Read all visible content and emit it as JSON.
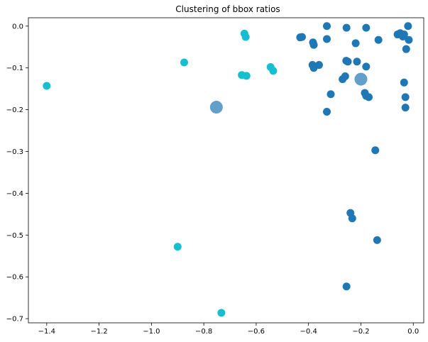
{
  "chart_data": {
    "type": "scatter",
    "title": "Clustering of bbox ratios",
    "xlabel": "",
    "ylabel": "",
    "xlim": [
      -1.47,
      0.04
    ],
    "ylim": [
      -0.71,
      0.02
    ],
    "xticks": [
      -1.4,
      -1.2,
      -1.0,
      -0.8,
      -0.6,
      -0.4,
      -0.2,
      0.0
    ],
    "xtick_labels": [
      "−1.4",
      "−1.2",
      "−1.0",
      "−0.8",
      "−0.6",
      "−0.4",
      "−0.2",
      "0.0"
    ],
    "yticks": [
      0.0,
      -0.1,
      -0.2,
      -0.3,
      -0.4,
      -0.5,
      -0.6,
      -0.7
    ],
    "ytick_labels": [
      "0.0",
      "−0.1",
      "−0.2",
      "−0.3",
      "−0.4",
      "−0.5",
      "−0.6",
      "−0.7"
    ],
    "grid": false,
    "legend": "none",
    "series": [
      {
        "color": "#1f77b4",
        "points": [
          [
            -0.432,
            -0.027
          ],
          [
            -0.425,
            -0.026
          ],
          [
            -0.33,
            0.0
          ],
          [
            -0.33,
            -0.031
          ],
          [
            -0.383,
            -0.039
          ],
          [
            -0.38,
            -0.045
          ],
          [
            -0.255,
            -0.004
          ],
          [
            -0.18,
            -0.004
          ],
          [
            -0.22,
            -0.041
          ],
          [
            -0.133,
            -0.033
          ],
          [
            -0.06,
            -0.02
          ],
          [
            -0.05,
            -0.017
          ],
          [
            -0.04,
            -0.025
          ],
          [
            -0.035,
            -0.02
          ],
          [
            -0.02,
            0.0
          ],
          [
            -0.017,
            -0.033
          ],
          [
            -0.027,
            -0.055
          ],
          [
            -0.256,
            -0.083
          ],
          [
            -0.25,
            -0.085
          ],
          [
            -0.215,
            -0.085
          ],
          [
            -0.18,
            -0.097
          ],
          [
            -0.385,
            -0.093
          ],
          [
            -0.38,
            -0.1
          ],
          [
            -0.36,
            -0.093
          ],
          [
            -0.27,
            -0.127
          ],
          [
            -0.26,
            -0.12
          ],
          [
            -0.035,
            -0.135
          ],
          [
            -0.185,
            -0.16
          ],
          [
            -0.18,
            -0.167
          ],
          [
            -0.17,
            -0.17
          ],
          [
            -0.03,
            -0.17
          ],
          [
            -0.03,
            -0.195
          ],
          [
            -0.315,
            -0.163
          ],
          [
            -0.33,
            -0.205
          ],
          [
            -0.145,
            -0.297
          ],
          [
            -0.24,
            -0.447
          ],
          [
            -0.233,
            -0.46
          ],
          [
            -0.138,
            -0.512
          ],
          [
            -0.255,
            -0.623
          ]
        ]
      },
      {
        "color": "#17becf",
        "points": [
          [
            -1.4,
            -0.143
          ],
          [
            -0.875,
            -0.087
          ],
          [
            -0.645,
            -0.018
          ],
          [
            -0.64,
            -0.026
          ],
          [
            -0.655,
            -0.117
          ],
          [
            -0.637,
            -0.119
          ],
          [
            -0.545,
            -0.098
          ],
          [
            -0.535,
            -0.107
          ],
          [
            -0.9,
            -0.528
          ],
          [
            -0.733,
            -0.686
          ]
        ]
      }
    ],
    "centroids": {
      "color": "#1f77b4",
      "points": [
        [
          -0.752,
          -0.194
        ],
        [
          -0.2,
          -0.127
        ]
      ]
    }
  }
}
